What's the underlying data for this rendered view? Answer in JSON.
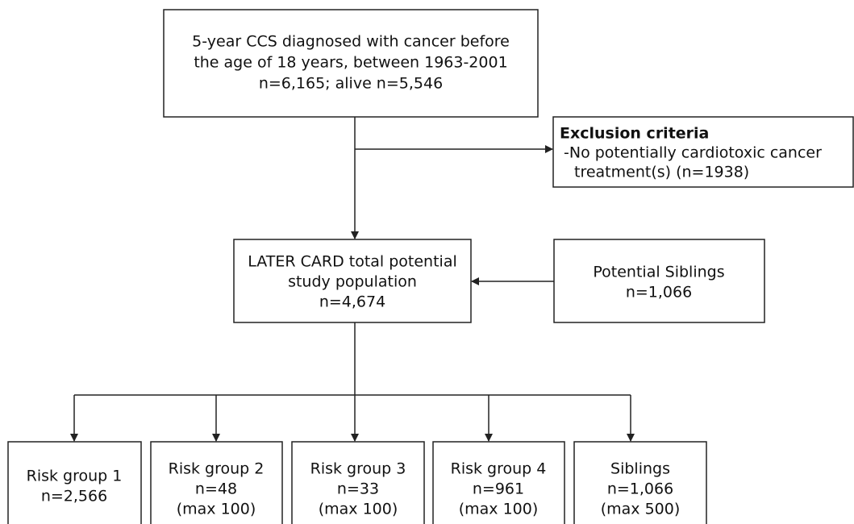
{
  "nodes": [
    {
      "lines": [
        "5-year CCS diagnosed with cancer before",
        "the age of 18 years, between 1963-2001",
        "n=6,165; alive n=5,546"
      ]
    },
    {
      "title": "Exclusion criteria",
      "lines": [
        "-No potentially cardiotoxic cancer",
        "treatment(s) (n=1938)"
      ]
    },
    {
      "lines": [
        "LATER CARD total potential",
        "study population",
        "n=4,674"
      ]
    },
    {
      "lines": [
        "Potential Siblings",
        "n=1,066"
      ]
    },
    {
      "lines": [
        "Risk group 1",
        "n=2,566"
      ]
    },
    {
      "lines": [
        "Risk group 2",
        "n=48",
        "(max 100)"
      ]
    },
    {
      "lines": [
        "Risk group 3",
        "n=33",
        "(max 100)"
      ]
    },
    {
      "lines": [
        "Risk group 4",
        "n=961",
        "(max 100)"
      ]
    },
    {
      "lines": [
        "Siblings",
        "n=1,066",
        "(max 500)"
      ]
    }
  ]
}
